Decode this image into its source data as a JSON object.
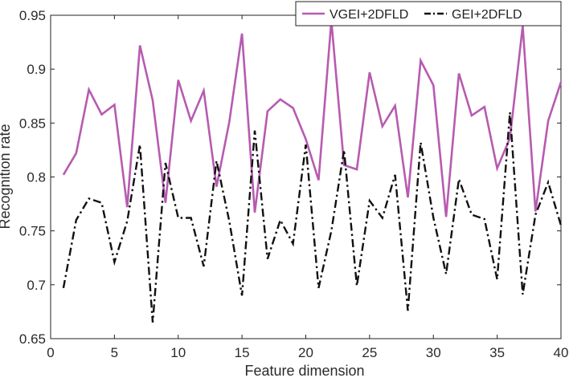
{
  "chart_data": {
    "type": "line",
    "xlabel": "Feature dimension",
    "ylabel": "Recognition rate",
    "xlim": [
      0,
      40
    ],
    "ylim": [
      0.65,
      0.95
    ],
    "x_ticks": [
      0,
      5,
      10,
      15,
      20,
      25,
      30,
      35,
      40
    ],
    "x_tick_labels": [
      "0",
      "5",
      "10",
      "15",
      "20",
      "25",
      "30",
      "35",
      "40"
    ],
    "y_ticks": [
      0.65,
      0.7,
      0.75,
      0.8,
      0.85,
      0.9,
      0.95
    ],
    "y_tick_labels": [
      "0.65",
      "0.7",
      "0.75",
      "0.8",
      "0.85",
      "0.9",
      "0.95"
    ],
    "grid": false,
    "legend_position": "top-right",
    "x": [
      1,
      2,
      3,
      4,
      5,
      6,
      7,
      8,
      9,
      10,
      11,
      12,
      13,
      14,
      15,
      16,
      17,
      18,
      19,
      20,
      21,
      22,
      23,
      24,
      25,
      26,
      27,
      28,
      29,
      30,
      31,
      32,
      33,
      34,
      35,
      36,
      37,
      38,
      39,
      40
    ],
    "series": [
      {
        "name": "VGEI+2DFLD",
        "color": "#b75bb0",
        "style": "solid",
        "values": [
          0.802,
          0.822,
          0.881,
          0.858,
          0.867,
          0.772,
          0.922,
          0.871,
          0.776,
          0.89,
          0.852,
          0.88,
          0.791,
          0.851,
          0.933,
          0.767,
          0.861,
          0.872,
          0.864,
          0.835,
          0.797,
          0.945,
          0.811,
          0.807,
          0.897,
          0.847,
          0.866,
          0.781,
          0.908,
          0.885,
          0.763,
          0.896,
          0.857,
          0.865,
          0.808,
          0.836,
          0.94,
          0.768,
          0.852,
          0.888
        ]
      },
      {
        "name": "GEI+2DFLD",
        "color": "#111111",
        "style": "dashdot",
        "values": [
          0.697,
          0.76,
          0.78,
          0.776,
          0.721,
          0.759,
          0.83,
          0.665,
          0.813,
          0.762,
          0.762,
          0.717,
          0.815,
          0.759,
          0.69,
          0.843,
          0.724,
          0.76,
          0.738,
          0.83,
          0.697,
          0.75,
          0.825,
          0.699,
          0.778,
          0.762,
          0.802,
          0.676,
          0.832,
          0.762,
          0.71,
          0.798,
          0.765,
          0.761,
          0.705,
          0.86,
          0.691,
          0.765,
          0.795,
          0.755
        ]
      }
    ]
  }
}
